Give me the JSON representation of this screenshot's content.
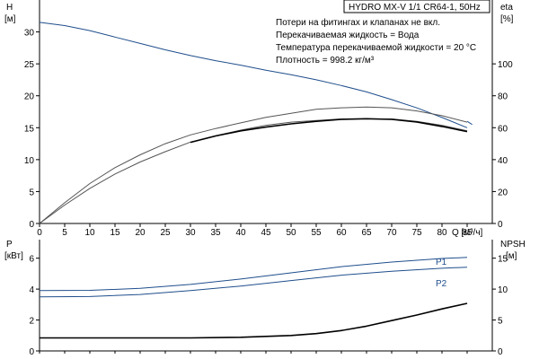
{
  "chart_data": [
    {
      "type": "line",
      "title": "HYDRO MX-V 1/1 CR64-1, 50Hz",
      "notes": [
        "Потери на фитингах и клапанах не вкл.",
        "Перекачиваемая жидкость = Вода",
        "Температура перекачиваемой жидкости = 20 °C",
        "Плотность = 998.2 кг/м³"
      ],
      "xlabel": "Q [м³/ч]",
      "x_ticks": [
        0,
        5,
        10,
        15,
        20,
        25,
        30,
        35,
        40,
        45,
        50,
        55,
        60,
        65,
        70,
        75,
        80,
        85
      ],
      "xlim": [
        0,
        90
      ],
      "y_left": {
        "label_top": "H",
        "label_unit": "[м]",
        "ticks": [
          0,
          5,
          10,
          15,
          20,
          25,
          30
        ],
        "lim": [
          0,
          35
        ]
      },
      "y_right": {
        "label_top": "eta",
        "label_unit": "[%]",
        "ticks": [
          0,
          20,
          40,
          60,
          80,
          100
        ],
        "lim": [
          0,
          140
        ]
      },
      "grid": false,
      "series": [
        {
          "axis": "left",
          "color": "#1f4e8c",
          "x": [
            0,
            5,
            10,
            15,
            20,
            25,
            30,
            35,
            40,
            45,
            50,
            55,
            60,
            65,
            70,
            75,
            80,
            85
          ],
          "y": [
            31.5,
            31.0,
            30.2,
            29.2,
            28.2,
            27.2,
            26.3,
            25.5,
            24.8,
            24.0,
            23.3,
            22.5,
            21.6,
            20.6,
            19.4,
            18.1,
            16.6,
            15.0
          ]
        },
        {
          "axis": "right",
          "color": "#1f4e8c",
          "x": [
            85,
            86
          ],
          "y": [
            64,
            62
          ]
        },
        {
          "axis": "right",
          "color": "#555555",
          "x": [
            0,
            5,
            10,
            15,
            20,
            25,
            30,
            35,
            40,
            45,
            50,
            55,
            60,
            65,
            70,
            75,
            80,
            85
          ],
          "y": [
            0,
            13,
            25,
            35,
            43,
            50,
            55.5,
            59.5,
            63,
            66.5,
            69,
            71.5,
            72.5,
            73,
            72.5,
            70.5,
            67.5,
            63.5
          ]
        },
        {
          "axis": "right",
          "color": "#555555",
          "x": [
            0,
            5,
            10,
            15,
            20,
            25,
            30,
            35,
            40,
            45,
            50,
            55,
            60,
            65,
            70,
            75,
            80,
            85
          ],
          "y": [
            0,
            11.5,
            22,
            31,
            38.5,
            45,
            51,
            55,
            58.5,
            61.5,
            63.5,
            64.5,
            65.5,
            65.5,
            65.5,
            64,
            61.5,
            58
          ]
        },
        {
          "axis": "left",
          "color": "#000000",
          "width": 1.6,
          "x": [
            30,
            35,
            40,
            45,
            50,
            55,
            60,
            65,
            70,
            75,
            80,
            85
          ],
          "y": [
            12.7,
            13.7,
            14.5,
            15.1,
            15.6,
            16.0,
            16.3,
            16.4,
            16.3,
            15.9,
            15.2,
            14.4
          ]
        }
      ]
    },
    {
      "type": "line",
      "xlim": [
        0,
        90
      ],
      "y_left": {
        "label_top": "P",
        "label_unit": "[кВт]",
        "ticks": [
          0,
          2,
          4,
          6
        ],
        "lim": [
          0,
          7.2
        ]
      },
      "y_right": {
        "label_top": "NPSH",
        "label_unit": "[м]",
        "ticks": [
          0,
          5,
          10,
          15
        ],
        "lim": [
          0,
          18
        ]
      },
      "grid": false,
      "series": [
        {
          "name": "P1",
          "axis": "left",
          "color": "#1f4e8c",
          "x": [
            0,
            10,
            20,
            30,
            40,
            50,
            60,
            70,
            80,
            85
          ],
          "y": [
            3.9,
            3.92,
            4.05,
            4.3,
            4.65,
            5.05,
            5.45,
            5.75,
            5.98,
            6.05
          ]
        },
        {
          "name": "P2",
          "axis": "left",
          "color": "#1f4e8c",
          "x": [
            0,
            10,
            20,
            30,
            40,
            50,
            60,
            70,
            80,
            85
          ],
          "y": [
            3.5,
            3.52,
            3.65,
            3.9,
            4.2,
            4.55,
            4.9,
            5.15,
            5.35,
            5.42
          ]
        },
        {
          "axis": "right",
          "color": "#000000",
          "width": 1.6,
          "x": [
            0,
            30,
            40,
            50,
            55,
            60,
            65,
            70,
            75,
            80,
            85
          ],
          "y": [
            2.1,
            2.1,
            2.2,
            2.5,
            2.8,
            3.3,
            4.0,
            4.9,
            5.8,
            6.8,
            7.7
          ]
        }
      ]
    }
  ]
}
